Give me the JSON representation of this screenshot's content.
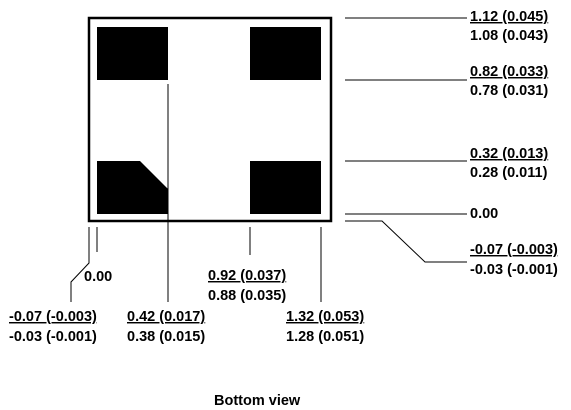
{
  "caption": "Bottom view",
  "right_dims": [
    {
      "top": "1.12 (0.045)",
      "bottom": "1.08 (0.043)"
    },
    {
      "top": "0.82 (0.033)",
      "bottom": "0.78 (0.031)"
    },
    {
      "top": "0.32 (0.013)",
      "bottom": "0.28 (0.011)"
    }
  ],
  "right_zero": "0.00",
  "right_offset": {
    "top": "-0.07 (-0.003)",
    "bottom": "-0.03 (-0.001)"
  },
  "bottom_zero": "0.00",
  "bottom_offset": {
    "top": "-0.07 (-0.003)",
    "bottom": "-0.03 (-0.001)"
  },
  "bottom_dims": [
    {
      "top": "0.42 (0.017)",
      "bottom": "0.38 (0.015)"
    },
    {
      "top": "0.92 (0.037)",
      "bottom": "0.88 (0.035)"
    },
    {
      "top": "1.32 (0.053)",
      "bottom": "1.28 (0.051)"
    }
  ]
}
